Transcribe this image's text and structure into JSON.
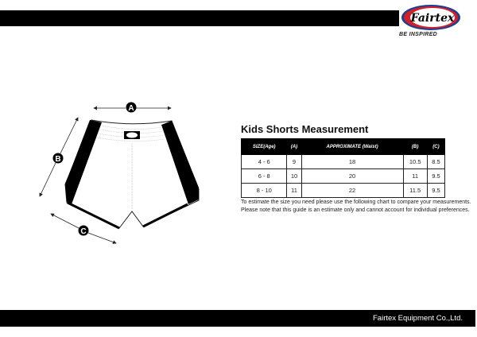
{
  "brand": {
    "logo_text": "Fairtex",
    "tagline": "BE INSPIRED",
    "colors": {
      "red": "#d0202a",
      "blue": "#1e3f8f"
    }
  },
  "diagram": {
    "labels": [
      "A",
      "B",
      "C"
    ]
  },
  "title": "Kids Shorts Measurement",
  "table": {
    "headers": [
      "SIZE(Age)",
      "(A)",
      "APPROXIMATE (Waist)",
      "(B)",
      "(C)"
    ],
    "rows": [
      [
        "4 - 6",
        "9",
        "18",
        "10.5",
        "8.5"
      ],
      [
        "6 - 8",
        "10",
        "20",
        "11",
        "9.5"
      ],
      [
        "8 - 10",
        "11",
        "22",
        "11.5",
        "9.5"
      ]
    ]
  },
  "notes": [
    "To estimate the size you need please use the following chart to compare your measurements.",
    "Please note that this guide is an estimate only and cannot account for individual preferences."
  ],
  "footer": "Fairtex Equipment Co.,Ltd."
}
